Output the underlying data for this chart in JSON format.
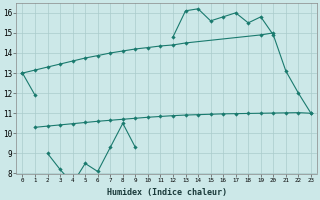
{
  "xlabel": "Humidex (Indice chaleur)",
  "color": "#1a7a6e",
  "bg_color": "#cce8e8",
  "grid_color": "#aacccc",
  "ylim": [
    8,
    16.5
  ],
  "yticks": [
    8,
    9,
    10,
    11,
    12,
    13,
    14,
    15,
    16
  ],
  "xlim": [
    -0.5,
    23.5
  ],
  "figsize": [
    3.2,
    2.0
  ],
  "dpi": 100,
  "line1_x": [
    0,
    1,
    12,
    13,
    14,
    15,
    16,
    17,
    18,
    19,
    20,
    21,
    22,
    23
  ],
  "line1_y": [
    13.0,
    11.9,
    14.8,
    16.1,
    16.2,
    15.6,
    15.8,
    16.0,
    15.5,
    15.8,
    14.9,
    13.1,
    12.0,
    11.0
  ],
  "line2_x": [
    0,
    1,
    2,
    3,
    4,
    5,
    6,
    7,
    8,
    9,
    10,
    11,
    12,
    13,
    19,
    20
  ],
  "line2_y": [
    13.0,
    13.15,
    13.3,
    13.45,
    13.6,
    13.75,
    13.87,
    14.0,
    14.1,
    14.2,
    14.27,
    14.35,
    14.4,
    14.5,
    14.9,
    15.0
  ],
  "line3_x": [
    1,
    2,
    3,
    4,
    5,
    6,
    7,
    8,
    9,
    10,
    11,
    12,
    13,
    14,
    15,
    16,
    17,
    18,
    19,
    20,
    21,
    22,
    23
  ],
  "line3_y": [
    10.3,
    10.36,
    10.42,
    10.48,
    10.54,
    10.6,
    10.65,
    10.7,
    10.75,
    10.8,
    10.84,
    10.88,
    10.91,
    10.93,
    10.95,
    10.97,
    10.98,
    10.99,
    11.0,
    11.01,
    11.02,
    11.03,
    11.0
  ],
  "line4_x": [
    2,
    3,
    4,
    5,
    6,
    7,
    8,
    9
  ],
  "line4_y": [
    9.0,
    8.2,
    7.5,
    8.5,
    8.1,
    9.3,
    10.5,
    9.3
  ]
}
